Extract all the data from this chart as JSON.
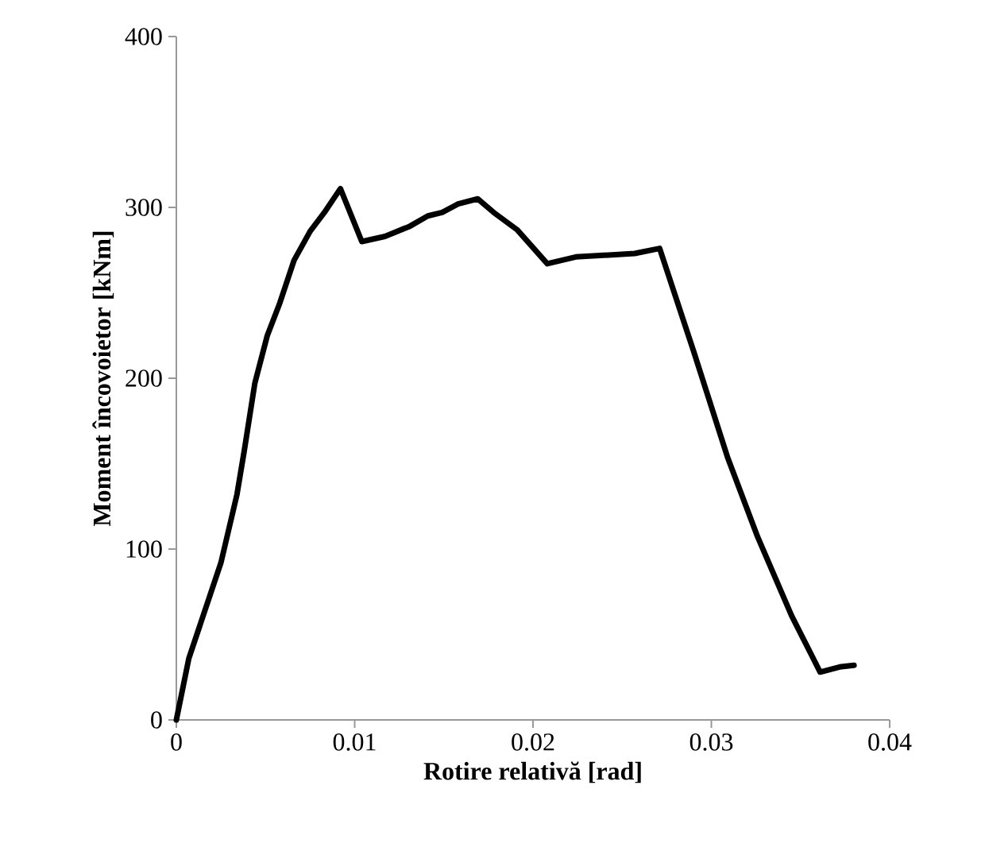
{
  "chart_data": {
    "type": "line",
    "xlabel": "Rotire relativă [rad]",
    "ylabel": "Moment încovoietor [kNm]",
    "xlim": [
      0,
      0.04
    ],
    "ylim": [
      0,
      400
    ],
    "xticks": [
      0,
      0.01,
      0.02,
      0.03,
      0.04
    ],
    "yticks": [
      0,
      100,
      200,
      300,
      400
    ],
    "grid": false,
    "marker": "none",
    "line_style": "solid",
    "series": [
      {
        "color": "#000000",
        "x": [
          0,
          0.0007,
          0.0016,
          0.0025,
          0.0034,
          0.0038,
          0.0044,
          0.0051,
          0.0058,
          0.0066,
          0.0075,
          0.0083,
          0.0092,
          0.0104,
          0.0117,
          0.0131,
          0.0141,
          0.0149,
          0.0158,
          0.0169,
          0.0178,
          0.0191,
          0.0208,
          0.0224,
          0.0257,
          0.0271,
          0.029,
          0.0309,
          0.0326,
          0.0345,
          0.0361,
          0.0372,
          0.038
        ],
        "values": [
          0,
          36,
          64,
          92,
          132,
          157,
          197,
          225,
          244,
          269,
          286,
          297,
          311,
          280,
          283,
          289,
          295,
          297,
          302,
          305,
          297,
          287,
          267,
          271,
          273,
          276,
          216,
          154,
          107,
          61,
          28,
          31,
          32
        ]
      }
    ]
  }
}
